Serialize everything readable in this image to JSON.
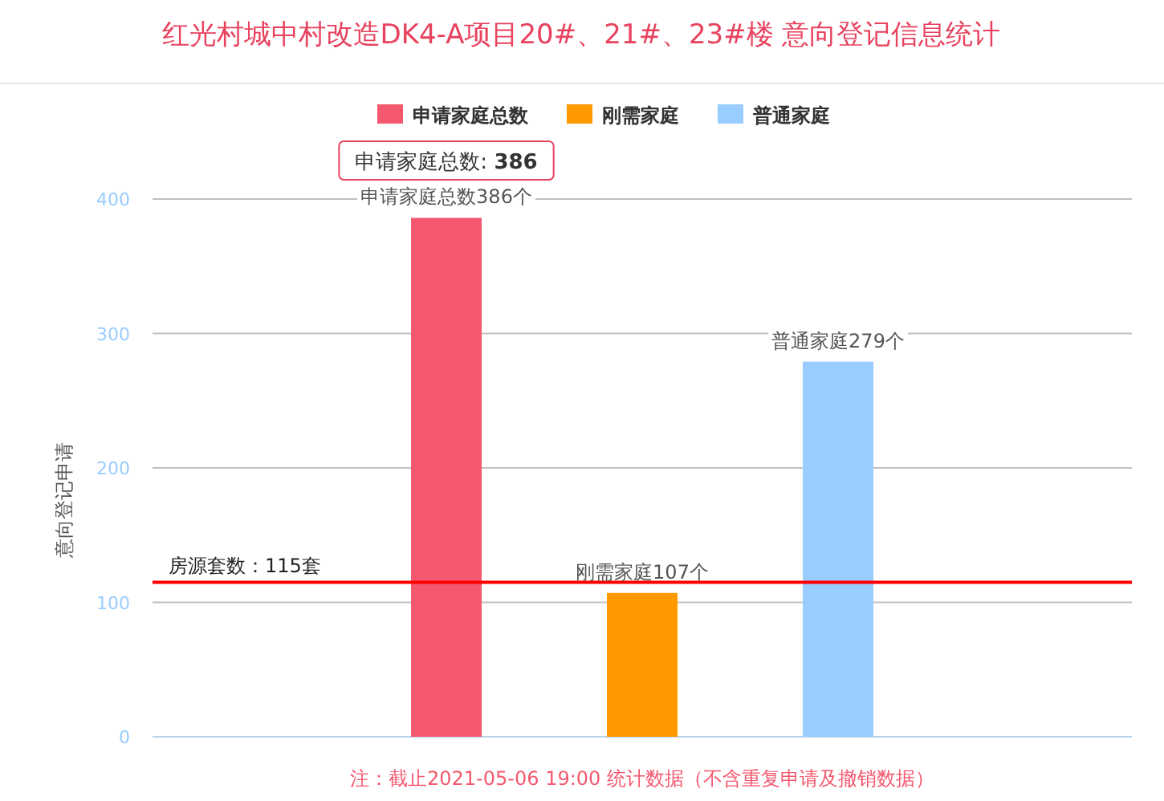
{
  "chart_data": {
    "type": "bar",
    "title": "红光村城中村改造DK4-A项目20#、21#、23#楼 意向登记信息统计",
    "ylabel": "意向登记申请",
    "categories": [
      null
    ],
    "series": [
      {
        "name": "申请家庭总数",
        "color": "#f4586e",
        "values": [
          386
        ],
        "value_labels": [
          "申请家庭总数386个"
        ]
      },
      {
        "name": "刚需家庭",
        "color": "#ff9900",
        "values": [
          107
        ],
        "value_labels": [
          "刚需家庭107个"
        ]
      },
      {
        "name": "普通家庭",
        "color": "#99ccff",
        "values": [
          279
        ],
        "value_labels": [
          "普通家庭279个"
        ]
      }
    ],
    "ylim": [
      0,
      400
    ],
    "yticks": [
      0,
      100,
      200,
      300,
      400
    ],
    "grid": "y",
    "legend": "top",
    "ref_lines": [
      {
        "axis": "y",
        "value": 115,
        "label": "房源套数：115套",
        "color": "#ff0000"
      }
    ],
    "annotations": [
      "申请家庭总数: **386**",
      "注：截止2021-05-06 19:00 统计数据（不含重复申请及撤销数据）"
    ]
  }
}
